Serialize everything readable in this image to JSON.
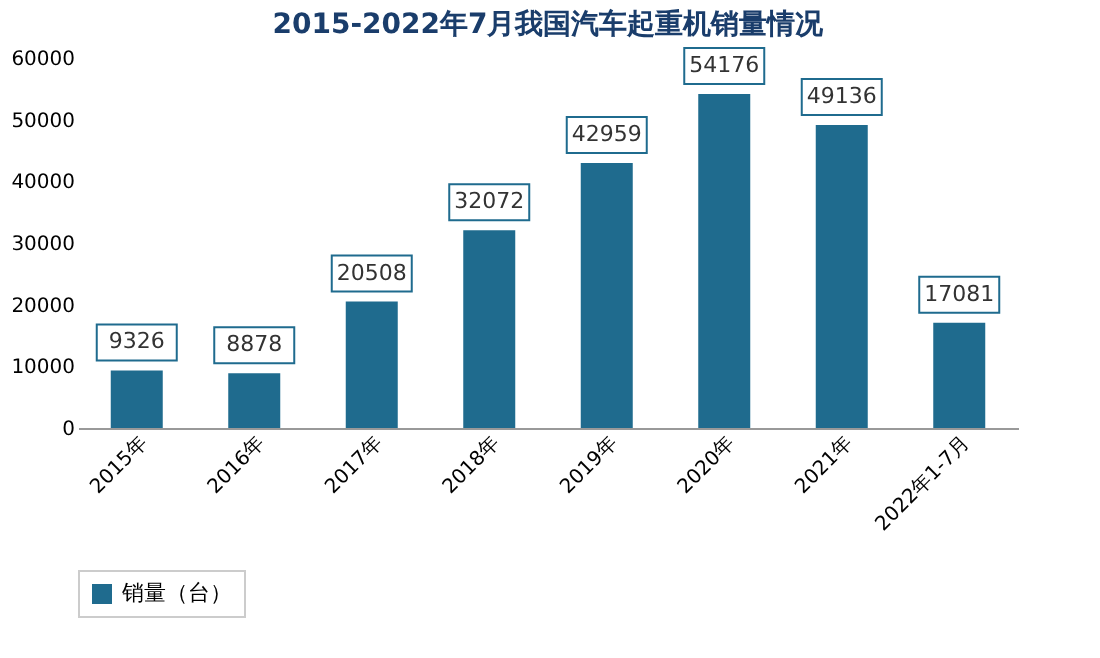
{
  "chart_data": {
    "type": "bar",
    "title": "2015-2022年7月我国汽车起重机销量情况",
    "categories": [
      "2015年",
      "2016年",
      "2017年",
      "2018年",
      "2019年",
      "2020年",
      "2021年",
      "2022年1-7月"
    ],
    "series": [
      {
        "name": "销量（台）",
        "color": "#1f6b8e",
        "values": [
          9326,
          8878,
          20508,
          32072,
          42959,
          54176,
          49136,
          17081
        ]
      }
    ],
    "ylim": [
      0,
      60000
    ],
    "yticks": [
      0,
      10000,
      20000,
      30000,
      40000,
      50000,
      60000
    ],
    "data_labels": true,
    "grid": false,
    "legend": "bottom"
  }
}
